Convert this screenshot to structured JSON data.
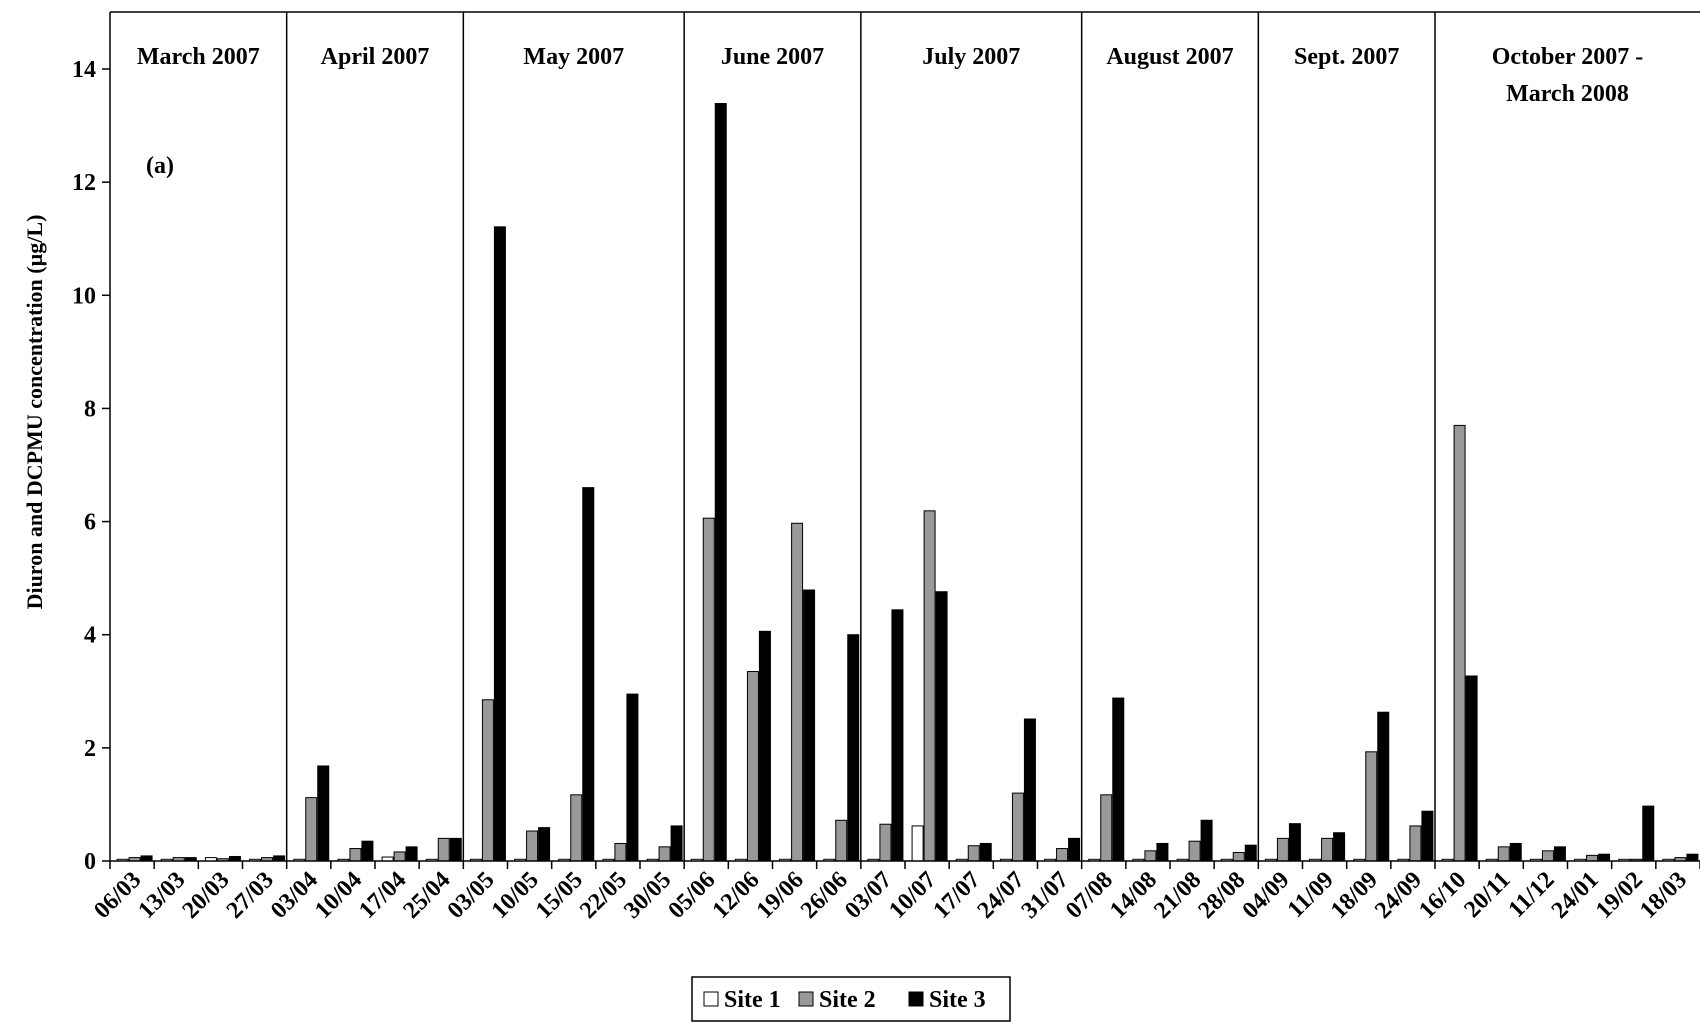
{
  "chart_data": {
    "type": "bar",
    "title": "",
    "annotation": "(a)",
    "xlabel": "",
    "ylabel": "Diuron and DCPMU concentration (µg/L)",
    "ylim": [
      0,
      15
    ],
    "yticks": [
      0,
      2,
      4,
      6,
      8,
      10,
      12,
      14
    ],
    "grid": false,
    "legend_position": "bottom-center",
    "categories": [
      "06/03",
      "13/03",
      "20/03",
      "27/03",
      "03/04",
      "10/04",
      "17/04",
      "25/04",
      "03/05",
      "10/05",
      "15/05",
      "22/05",
      "30/05",
      "05/06",
      "12/06",
      "19/06",
      "26/06",
      "03/07",
      "10/07",
      "17/07",
      "24/07",
      "31/07",
      "07/08",
      "14/08",
      "21/08",
      "28/08",
      "04/09",
      "11/09",
      "18/09",
      "24/09",
      "16/10",
      "20/11",
      "11/12",
      "24/01",
      "19/02",
      "18/03"
    ],
    "groups": [
      {
        "label": "March 2007",
        "start": 0,
        "end": 4
      },
      {
        "label": "April 2007",
        "start": 4,
        "end": 8
      },
      {
        "label": "May 2007",
        "start": 8,
        "end": 13
      },
      {
        "label": "June 2007",
        "start": 13,
        "end": 17
      },
      {
        "label": "July 2007",
        "start": 17,
        "end": 22
      },
      {
        "label": "August 2007",
        "start": 22,
        "end": 26
      },
      {
        "label": "Sept. 2007",
        "start": 26,
        "end": 30
      },
      {
        "label": "October 2007 -",
        "label2": "March 2008",
        "start": 30,
        "end": 36
      }
    ],
    "series": [
      {
        "name": "Site 1",
        "color": "#ffffff",
        "values": [
          0.03,
          0.03,
          0.06,
          0.03,
          0.03,
          0.03,
          0.07,
          0.03,
          0.03,
          0.03,
          0.03,
          0.03,
          0.03,
          0.03,
          0.03,
          0.03,
          0.03,
          0.03,
          0.62,
          0.03,
          0.03,
          0.03,
          0.03,
          0.03,
          0.03,
          0.03,
          0.03,
          0.03,
          0.03,
          0.03,
          0.03,
          0.03,
          0.03,
          0.03,
          0.03,
          0.03
        ]
      },
      {
        "name": "Site 2",
        "color": "#999999",
        "values": [
          0.06,
          0.06,
          0.04,
          0.06,
          1.12,
          0.22,
          0.16,
          0.4,
          2.85,
          0.53,
          1.17,
          0.31,
          0.25,
          6.06,
          3.35,
          5.97,
          0.72,
          0.65,
          6.19,
          0.27,
          1.2,
          0.22,
          1.17,
          0.18,
          0.35,
          0.15,
          0.4,
          0.4,
          1.93,
          0.62,
          7.7,
          0.25,
          0.18,
          0.1,
          0.03,
          0.06
        ]
      },
      {
        "name": "Site 3",
        "color": "#000000",
        "values": [
          0.09,
          0.06,
          0.08,
          0.09,
          1.68,
          0.35,
          0.25,
          0.4,
          11.21,
          0.59,
          6.6,
          2.95,
          0.62,
          13.39,
          4.06,
          4.79,
          4.0,
          4.44,
          4.76,
          0.31,
          2.51,
          0.4,
          2.88,
          0.31,
          0.72,
          0.28,
          0.66,
          0.5,
          2.63,
          0.88,
          3.27,
          0.31,
          0.25,
          0.12,
          0.97,
          0.12
        ]
      }
    ]
  }
}
